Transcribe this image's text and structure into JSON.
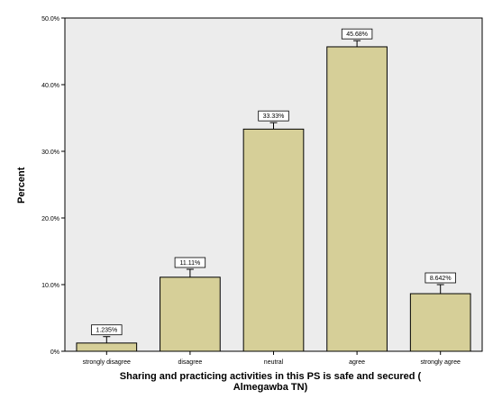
{
  "chart_data": {
    "type": "bar",
    "categories": [
      "strongly disagree",
      "disagree",
      "neutral",
      "agree",
      "strongly agree"
    ],
    "values": [
      1.235,
      11.11,
      33.33,
      45.68,
      8.642
    ],
    "value_labels": [
      "1.235%",
      "11.11%",
      "33.33%",
      "45.68%",
      "8.642%"
    ],
    "error_high": [
      2.2,
      12.3,
      34.3,
      46.6,
      10.0
    ],
    "ylabel": "Percent",
    "xlabel_lines": [
      "Sharing and practicing activities in this PS is safe and secured (",
      "Almegawba TN)"
    ],
    "ylim": [
      0,
      50
    ],
    "yticks": [
      0,
      10,
      20,
      30,
      40,
      50
    ],
    "ytick_labels": [
      "0%",
      "10.0%",
      "20.0%",
      "30.0%",
      "40.0%",
      "50.0%"
    ],
    "grid": false,
    "colors": {
      "bar": "#d6cf98",
      "bar_stroke": "#000000",
      "plot_bg": "#ececec",
      "border": "#000000"
    }
  }
}
